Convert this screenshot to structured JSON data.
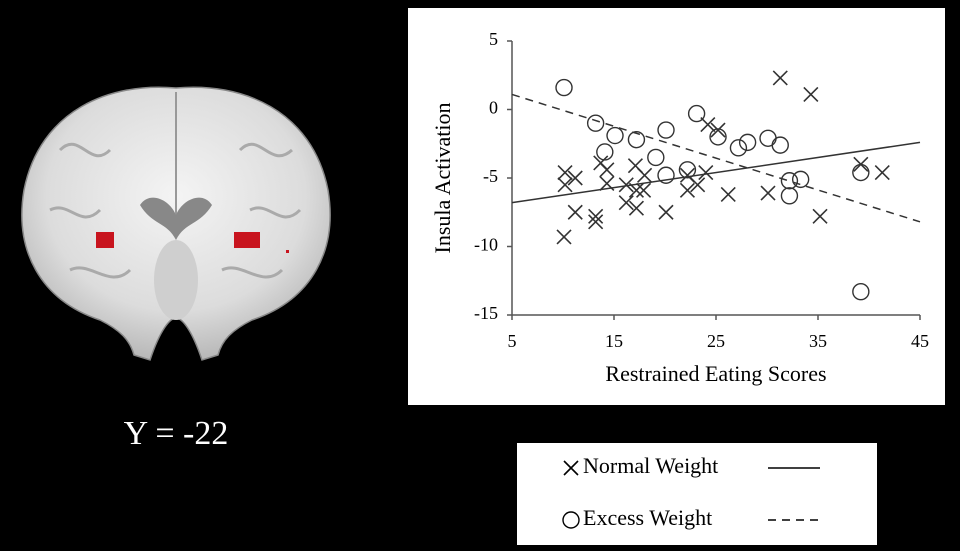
{
  "image_label": "Y = -22",
  "chart_data": {
    "type": "scatter",
    "x_label": "Restrained Eating Scores",
    "y_label": "Insula Activation",
    "xlim": [
      5,
      45
    ],
    "xticks": [
      5,
      15,
      25,
      35,
      45
    ],
    "ylim": [
      -15,
      5
    ],
    "yticks": [
      5,
      0,
      -5,
      -10,
      -15
    ],
    "series": [
      {
        "name": "Normal Weight",
        "marker": "x",
        "line_style": "solid",
        "color": "#333333",
        "x": [
          10.1,
          10.2,
          10.2,
          11.2,
          11.2,
          13.2,
          13.2,
          13.7,
          14.3,
          14.3,
          16.2,
          16.2,
          17.1,
          17.2,
          17.2,
          18.0,
          17.9,
          20.1,
          22.2,
          22.2,
          23.2,
          24.0,
          24.2,
          25.2,
          26.2,
          31.3,
          34.3,
          35.2,
          39.2,
          41.3,
          30.1
        ],
        "values": [
          -9.3,
          -4.6,
          -5.5,
          -5.0,
          -7.5,
          -7.8,
          -8.2,
          -3.9,
          -5.4,
          -4.4,
          -5.5,
          -6.8,
          -4.1,
          -5.9,
          -7.2,
          -4.8,
          -5.9,
          -7.5,
          -4.8,
          -5.9,
          -5.5,
          -4.6,
          -1.1,
          -1.5,
          -6.2,
          2.3,
          1.1,
          -7.8,
          -4.0,
          -4.6,
          -6.1
        ],
        "trend": {
          "x": [
            5,
            45
          ],
          "y": [
            -6.8,
            -2.4
          ]
        }
      },
      {
        "name": "Excess Weight",
        "marker": "o",
        "line_style": "dashed",
        "color": "#333333",
        "x": [
          10.1,
          13.2,
          14.1,
          15.1,
          17.2,
          19.1,
          20.1,
          20.1,
          22.2,
          23.1,
          25.2,
          27.2,
          28.1,
          30.1,
          31.3,
          32.2,
          32.2,
          33.3,
          39.2,
          39.2
        ],
        "values": [
          1.6,
          -1.0,
          -3.1,
          -1.9,
          -2.2,
          -3.5,
          -1.5,
          -4.8,
          -4.4,
          -0.3,
          -2.0,
          -2.8,
          -2.4,
          -2.1,
          -2.6,
          -5.2,
          -6.3,
          -5.1,
          -4.6,
          -13.3
        ],
        "trend": {
          "x": [
            5,
            45
          ],
          "y": [
            1.1,
            -8.2
          ]
        }
      }
    ]
  }
}
